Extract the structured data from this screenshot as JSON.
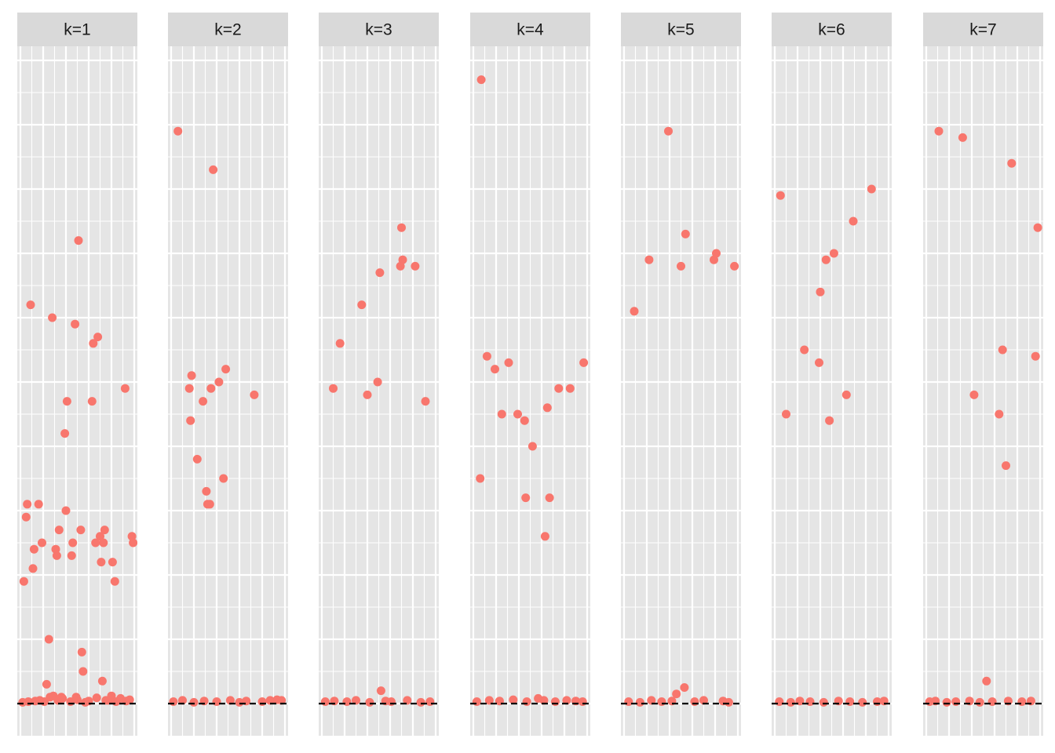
{
  "chart_data": {
    "type": "scatter",
    "layout": "faceted",
    "title": "",
    "xlabel": "",
    "ylabel": "",
    "grid": true,
    "axis_ticks_shown": false,
    "xlim": [
      0,
      100
    ],
    "ylim": [
      -0.5,
      10.5
    ],
    "reference_line": {
      "y": 0,
      "style": "dashed",
      "color": "#000000"
    },
    "point_color": "#F8766D",
    "panel_background": "#E5E5E5",
    "strip_background": "#D9D9D9",
    "facets": [
      {
        "label": "k=1",
        "points": [
          [
            3,
            1.9
          ],
          [
            5,
            2.9
          ],
          [
            6,
            3.1
          ],
          [
            9,
            6.2
          ],
          [
            11,
            2.1
          ],
          [
            12,
            2.4
          ],
          [
            16,
            3.1
          ],
          [
            19,
            2.5
          ],
          [
            23,
            0.3
          ],
          [
            25,
            1.0
          ],
          [
            28,
            6.0
          ],
          [
            31,
            2.4
          ],
          [
            32,
            2.3
          ],
          [
            34,
            2.7
          ],
          [
            36,
            0.1
          ],
          [
            39,
            4.2
          ],
          [
            40,
            3.0
          ],
          [
            41,
            4.7
          ],
          [
            45,
            2.3
          ],
          [
            46,
            2.5
          ],
          [
            48,
            5.9
          ],
          [
            49,
            0.1
          ],
          [
            51,
            7.2
          ],
          [
            53,
            2.7
          ],
          [
            54,
            0.8
          ],
          [
            55,
            0.5
          ],
          [
            63,
            4.7
          ],
          [
            64,
            5.6
          ],
          [
            66,
            2.5
          ],
          [
            68,
            5.7
          ],
          [
            70,
            2.6
          ],
          [
            71,
            2.2
          ],
          [
            72,
            0.35
          ],
          [
            73,
            2.5
          ],
          [
            74,
            2.7
          ],
          [
            75,
            0.05
          ],
          [
            81,
            2.2
          ],
          [
            83,
            1.9
          ],
          [
            92,
            4.9
          ],
          [
            98,
            2.6
          ],
          [
            99,
            2.5
          ],
          [
            2,
            0.02
          ],
          [
            7,
            0.03
          ],
          [
            13,
            0.04
          ],
          [
            17,
            0.05
          ],
          [
            21,
            0.03
          ],
          [
            26,
            0.1
          ],
          [
            29,
            0.12
          ],
          [
            33,
            0.05
          ],
          [
            37,
            0.08
          ],
          [
            44,
            0.03
          ],
          [
            50,
            0.06
          ],
          [
            57,
            0.02
          ],
          [
            60,
            0.04
          ],
          [
            67,
            0.09
          ],
          [
            77,
            0.05
          ],
          [
            80,
            0.12
          ],
          [
            84,
            0.03
          ],
          [
            88,
            0.08
          ],
          [
            93,
            0.04
          ],
          [
            96,
            0.06
          ]
        ]
      },
      {
        "label": "k=2",
        "points": [
          [
            6,
            8.9
          ],
          [
            16,
            4.9
          ],
          [
            17,
            4.4
          ],
          [
            18,
            5.1
          ],
          [
            23,
            3.8
          ],
          [
            28,
            4.7
          ],
          [
            31,
            3.3
          ],
          [
            32,
            3.1
          ],
          [
            34,
            3.1
          ],
          [
            35,
            4.9
          ],
          [
            37,
            8.3
          ],
          [
            42,
            5.0
          ],
          [
            46,
            3.5
          ],
          [
            48,
            5.2
          ],
          [
            73,
            4.8
          ],
          [
            2,
            0.03
          ],
          [
            10,
            0.05
          ],
          [
            20,
            0.02
          ],
          [
            29,
            0.04
          ],
          [
            40,
            0.03
          ],
          [
            52,
            0.05
          ],
          [
            60,
            0.02
          ],
          [
            66,
            0.04
          ],
          [
            80,
            0.03
          ],
          [
            87,
            0.05
          ],
          [
            93,
            0.06
          ],
          [
            97,
            0.05
          ]
        ]
      },
      {
        "label": "k=3",
        "points": [
          [
            10,
            4.9
          ],
          [
            16,
            5.6
          ],
          [
            35,
            6.2
          ],
          [
            40,
            4.8
          ],
          [
            49,
            5.0
          ],
          [
            51,
            6.7
          ],
          [
            52,
            0.2
          ],
          [
            69,
            6.8
          ],
          [
            70,
            7.4
          ],
          [
            71,
            6.9
          ],
          [
            82,
            6.8
          ],
          [
            91,
            4.7
          ],
          [
            3,
            0.03
          ],
          [
            11,
            0.04
          ],
          [
            22,
            0.03
          ],
          [
            30,
            0.05
          ],
          [
            42,
            0.02
          ],
          [
            56,
            0.04
          ],
          [
            61,
            0.03
          ],
          [
            75,
            0.05
          ],
          [
            87,
            0.02
          ],
          [
            95,
            0.03
          ]
        ]
      },
      {
        "label": "k=4",
        "points": [
          [
            6,
            3.5
          ],
          [
            7,
            9.7
          ],
          [
            12,
            5.4
          ],
          [
            19,
            5.2
          ],
          [
            25,
            4.5
          ],
          [
            31,
            5.3
          ],
          [
            39,
            4.5
          ],
          [
            45,
            4.4
          ],
          [
            46,
            3.2
          ],
          [
            52,
            4.0
          ],
          [
            63,
            2.6
          ],
          [
            65,
            4.6
          ],
          [
            67,
            3.2
          ],
          [
            75,
            4.9
          ],
          [
            85,
            4.9
          ],
          [
            97,
            5.3
          ],
          [
            3,
            0.03
          ],
          [
            14,
            0.05
          ],
          [
            23,
            0.04
          ],
          [
            35,
            0.06
          ],
          [
            47,
            0.03
          ],
          [
            57,
            0.08
          ],
          [
            62,
            0.05
          ],
          [
            72,
            0.03
          ],
          [
            82,
            0.05
          ],
          [
            90,
            0.04
          ],
          [
            96,
            0.03
          ]
        ]
      },
      {
        "label": "k=5",
        "points": [
          [
            9,
            6.1
          ],
          [
            22,
            6.9
          ],
          [
            39,
            8.9
          ],
          [
            46,
            0.15
          ],
          [
            50,
            6.8
          ],
          [
            53,
            0.25
          ],
          [
            54,
            7.3
          ],
          [
            79,
            6.9
          ],
          [
            81,
            7.0
          ],
          [
            97,
            6.8
          ],
          [
            4,
            0.03
          ],
          [
            14,
            0.02
          ],
          [
            24,
            0.05
          ],
          [
            33,
            0.03
          ],
          [
            42,
            0.04
          ],
          [
            62,
            0.03
          ],
          [
            70,
            0.05
          ],
          [
            87,
            0.04
          ],
          [
            92,
            0.02
          ]
        ]
      },
      {
        "label": "k=6",
        "points": [
          [
            5,
            7.9
          ],
          [
            10,
            4.5
          ],
          [
            26,
            5.5
          ],
          [
            39,
            5.3
          ],
          [
            40,
            6.4
          ],
          [
            45,
            6.9
          ],
          [
            48,
            4.4
          ],
          [
            52,
            7.0
          ],
          [
            63,
            4.8
          ],
          [
            69,
            7.5
          ],
          [
            85,
            8.0
          ],
          [
            4,
            0.03
          ],
          [
            14,
            0.02
          ],
          [
            22,
            0.04
          ],
          [
            31,
            0.03
          ],
          [
            43,
            0.02
          ],
          [
            56,
            0.04
          ],
          [
            66,
            0.03
          ],
          [
            77,
            0.02
          ],
          [
            90,
            0.03
          ],
          [
            96,
            0.04
          ]
        ]
      },
      {
        "label": "k=7",
        "points": [
          [
            11,
            8.9
          ],
          [
            32,
            8.8
          ],
          [
            42,
            4.8
          ],
          [
            53,
            0.35
          ],
          [
            64,
            4.5
          ],
          [
            67,
            5.5
          ],
          [
            70,
            3.7
          ],
          [
            75,
            8.4
          ],
          [
            96,
            5.4
          ],
          [
            98,
            7.4
          ],
          [
            3,
            0.03
          ],
          [
            8,
            0.04
          ],
          [
            18,
            0.02
          ],
          [
            26,
            0.03
          ],
          [
            38,
            0.04
          ],
          [
            47,
            0.02
          ],
          [
            58,
            0.03
          ],
          [
            72,
            0.04
          ],
          [
            84,
            0.03
          ],
          [
            92,
            0.04
          ]
        ]
      }
    ]
  }
}
